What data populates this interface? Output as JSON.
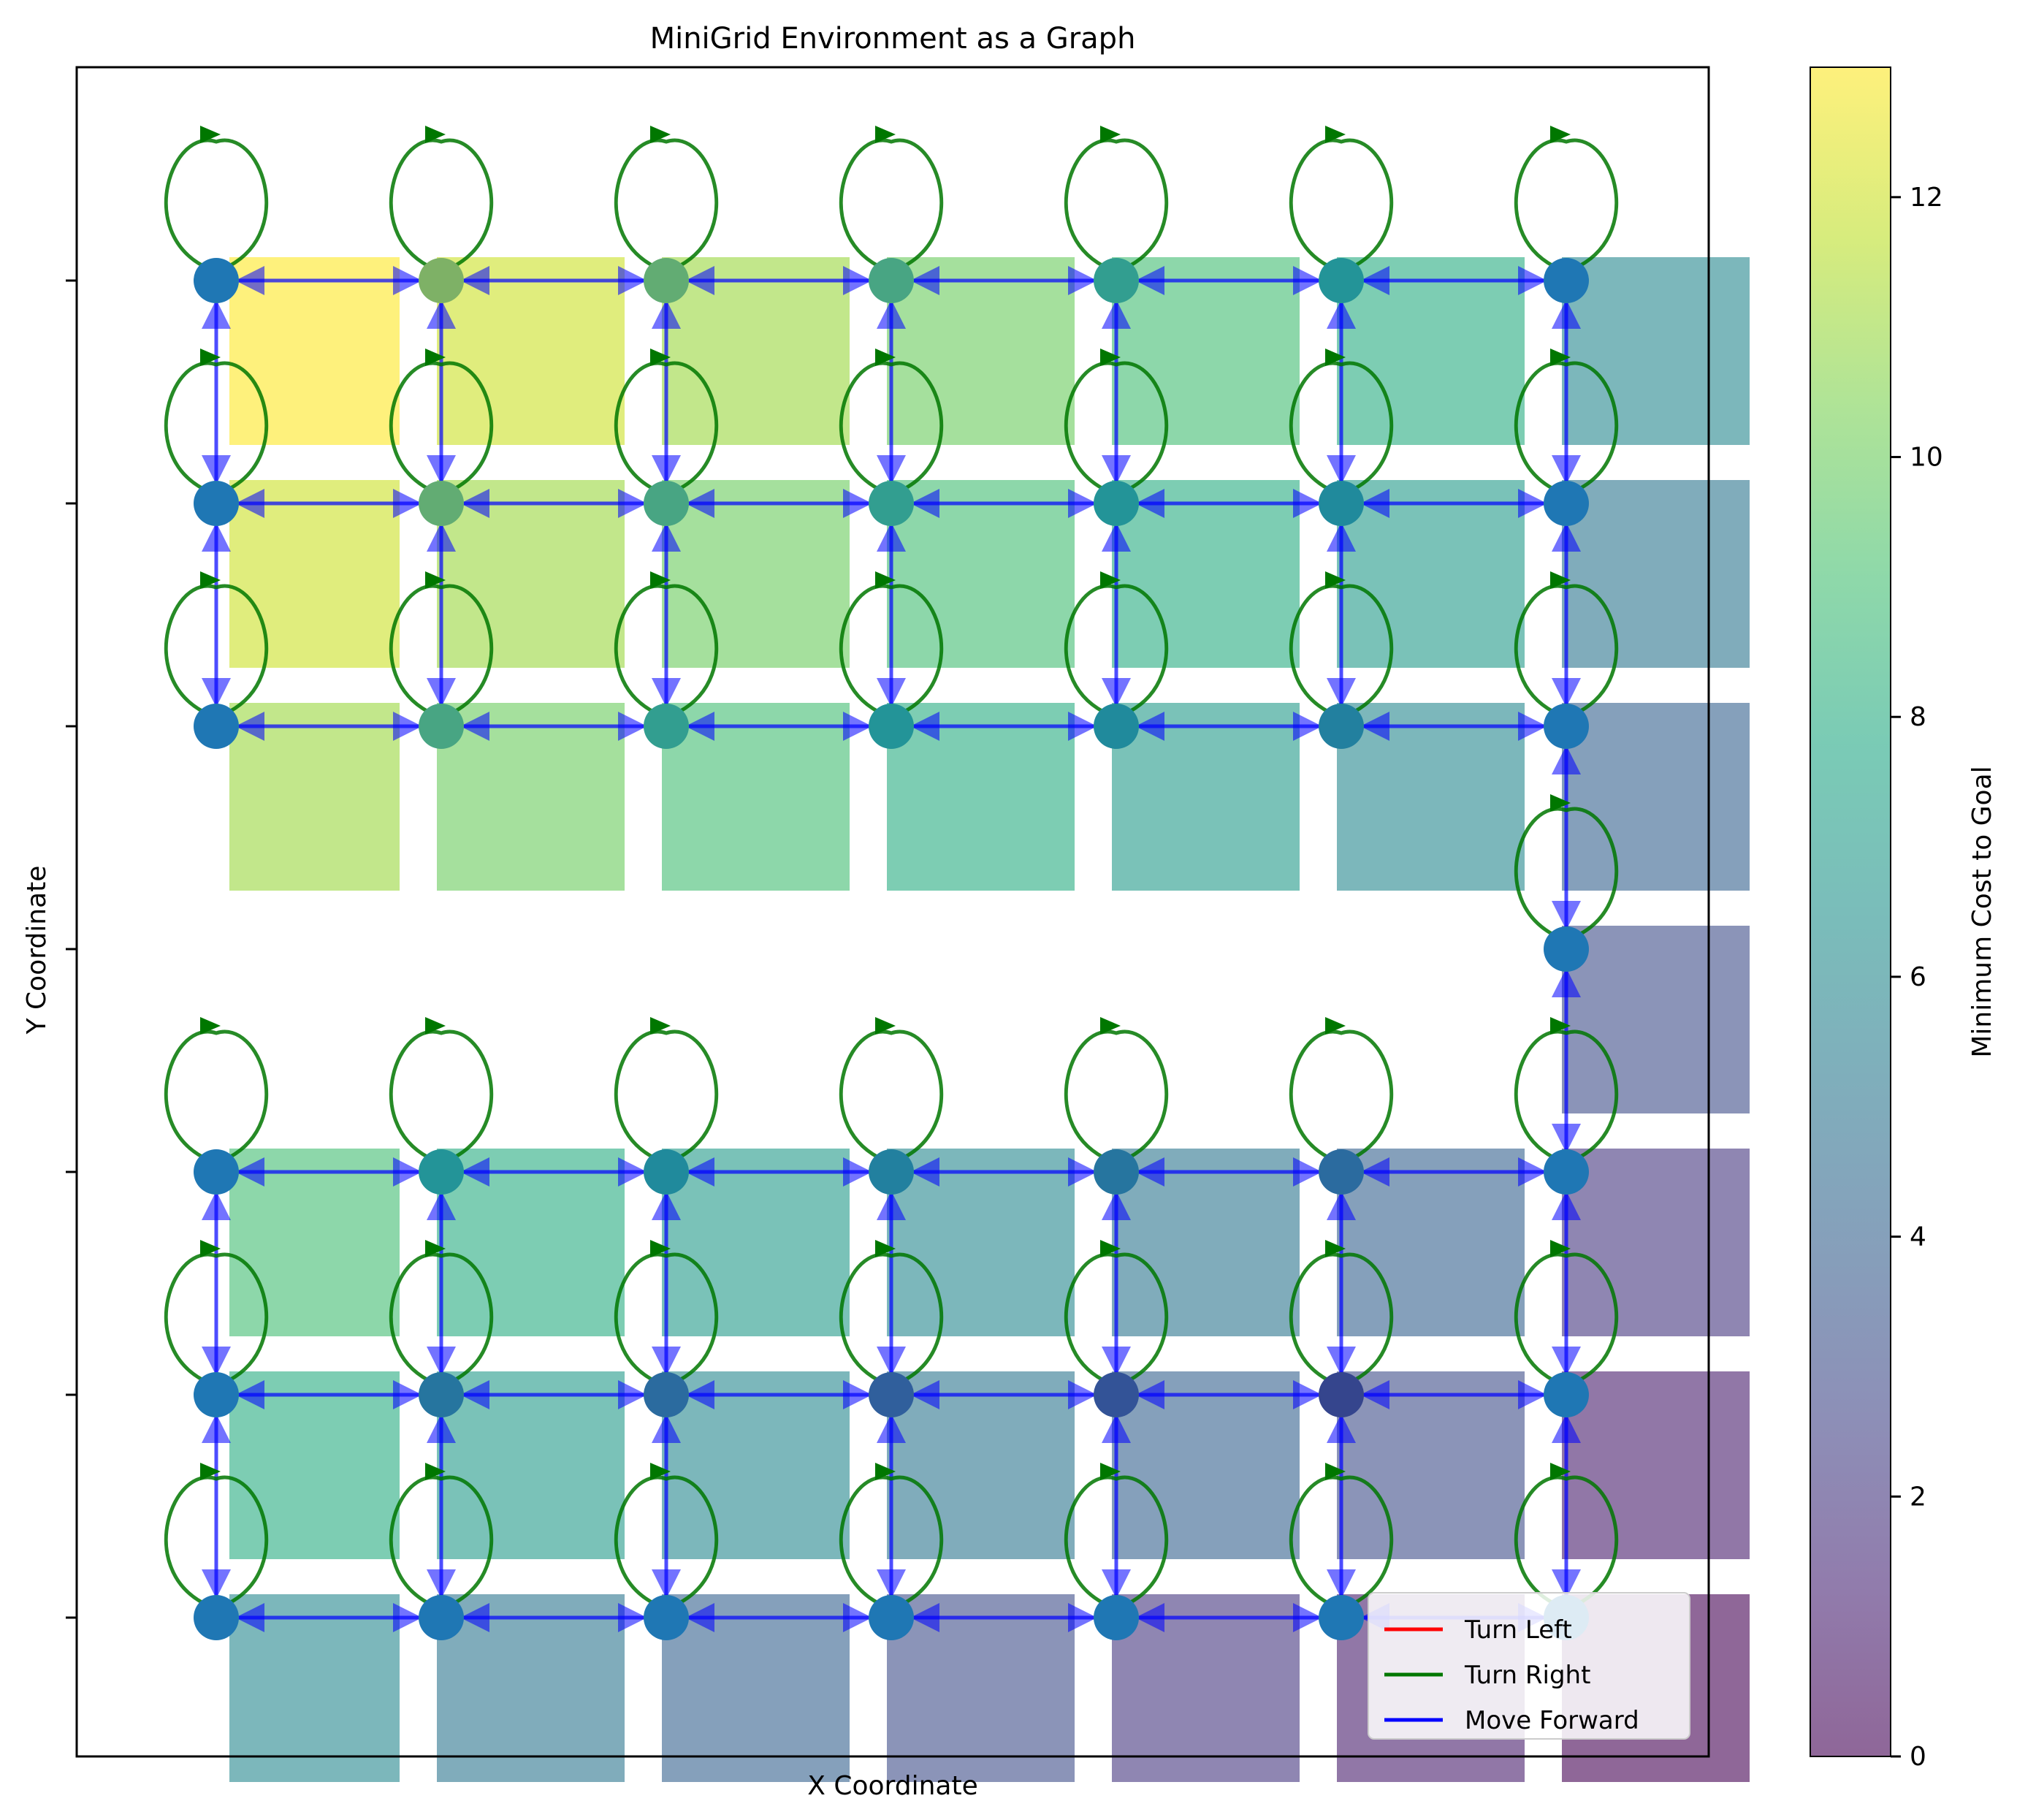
{
  "chart_data": {
    "type": "heatmap",
    "title": "MiniGrid Environment as a Graph",
    "xlabel": "X Coordinate",
    "ylabel": "Y Coordinate",
    "colorbar": {
      "label": "Minimum Cost to Goal",
      "ticks": [
        "0",
        "2",
        "4",
        "6",
        "8",
        "10",
        "12"
      ],
      "range": [
        0,
        13
      ],
      "colormap": "viridis"
    },
    "grid": {
      "columns": 7,
      "rows": 7
    },
    "wall_row": 3,
    "wall_columns": [
      0,
      1,
      2,
      3,
      4,
      5
    ],
    "cost_cells": [
      [
        13,
        12,
        11,
        10,
        9,
        8,
        6
      ],
      [
        12,
        11,
        10,
        9,
        8,
        7,
        5
      ],
      [
        11,
        10,
        9,
        8,
        7,
        6,
        4
      ],
      [
        null,
        null,
        null,
        null,
        null,
        null,
        3
      ],
      [
        9,
        8,
        7,
        6,
        5,
        4,
        2
      ],
      [
        8,
        7,
        6,
        5,
        4,
        3,
        1
      ],
      [
        6,
        5,
        4,
        3,
        2,
        1,
        0
      ]
    ],
    "node_fill": [
      [
        5,
        12,
        11,
        10,
        9,
        8,
        5
      ],
      [
        5,
        11,
        10,
        9,
        8,
        7,
        5
      ],
      [
        5,
        10,
        9,
        8,
        7,
        6,
        5
      ],
      [
        null,
        null,
        null,
        null,
        null,
        null,
        5
      ],
      [
        5,
        8,
        7,
        6,
        5,
        4,
        5
      ],
      [
        5,
        5,
        4,
        3,
        2,
        1,
        5
      ],
      [
        5,
        5,
        5,
        5,
        5,
        5,
        5
      ]
    ],
    "series": [
      {
        "name": "Turn Left",
        "color": "#ff0000"
      },
      {
        "name": "Turn Right",
        "color": "#007700"
      },
      {
        "name": "Move Forward",
        "color": "#0000ff"
      }
    ],
    "legend_position": "lower-right",
    "x_ticks_labeled": false,
    "y_ticks_labeled": false,
    "node_color": "#1f77b4"
  }
}
